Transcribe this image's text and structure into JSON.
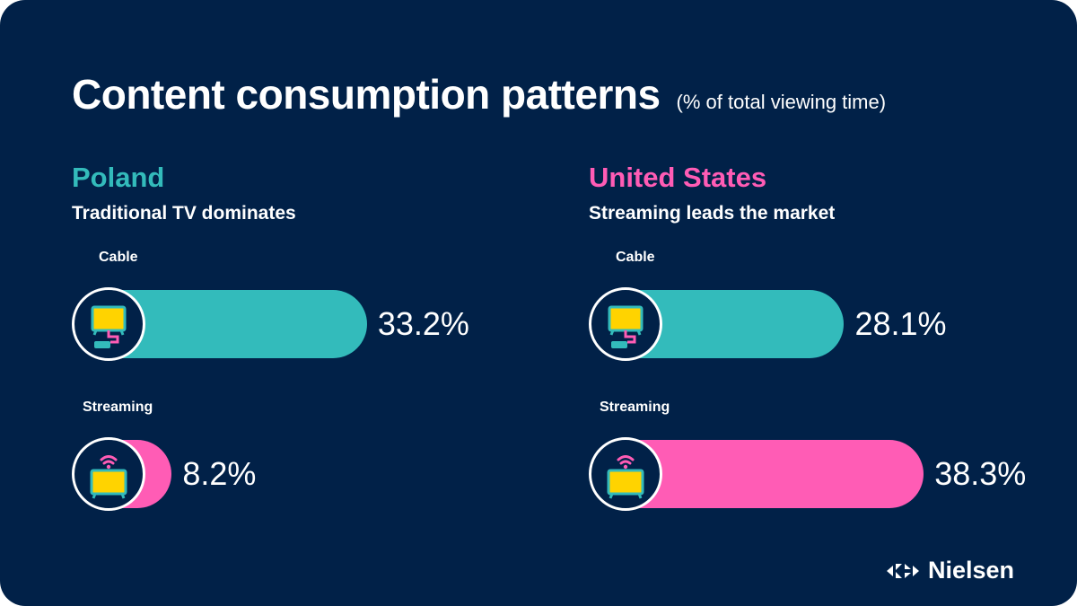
{
  "header": {
    "title": "Content consumption patterns",
    "subtitle": "(% of total viewing time)"
  },
  "brand": {
    "name": "Nielsen"
  },
  "colors": {
    "background": "#012148",
    "cable": "#33BBBB",
    "streaming": "#FF5CB5",
    "tv_screen": "#FFD300",
    "poland": "#33BBBB",
    "us": "#FF5CB5"
  },
  "icons": {
    "cable": "cable-tv-icon",
    "streaming": "streaming-tv-icon"
  },
  "chart_data": [
    {
      "type": "bar",
      "orientation": "horizontal",
      "title": "Poland",
      "subtitle": "Traditional TV dominates",
      "unit": "%",
      "categories": [
        "Cable",
        "Streaming"
      ],
      "values": [
        33.2,
        8.2
      ],
      "value_labels": [
        "33.2%",
        "8.2%"
      ]
    },
    {
      "type": "bar",
      "orientation": "horizontal",
      "title": "United States",
      "subtitle": "Streaming leads the market",
      "unit": "%",
      "categories": [
        "Cable",
        "Streaming"
      ],
      "values": [
        28.1,
        38.3
      ],
      "value_labels": [
        "28.1%",
        "38.3%"
      ]
    }
  ]
}
